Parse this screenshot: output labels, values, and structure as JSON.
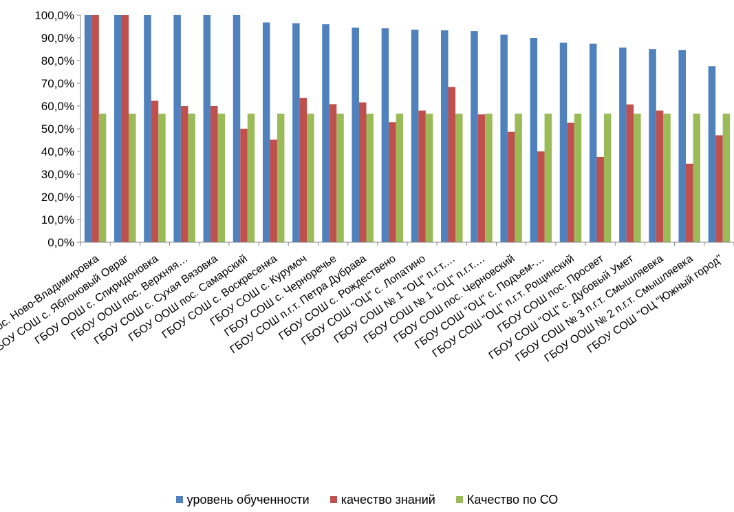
{
  "chart_data": {
    "type": "bar",
    "title": "",
    "xlabel": "",
    "ylabel": "",
    "ylim": [
      0,
      100
    ],
    "yticks": [
      "0,0%",
      "10,0%",
      "20,0%",
      "30,0%",
      "40,0%",
      "50,0%",
      "60,0%",
      "70,0%",
      "80,0%",
      "90,0%",
      "100,0%"
    ],
    "grid": false,
    "legend_position": "bottom",
    "categories": [
      "ГБОУ СОШ пос. Ново-Владимировка",
      "ГБОУ СОШ с. Яблоновый Овраг",
      "ГБОУ ООШ с. Спиридоновка",
      "ГБОУ ООШ пос. Верхняя…",
      "ГБОУ СОШ с. Сухая Вязовка",
      "ГБОУ ООШ пос. Самарский",
      "ГБОУ СОШ с. Воскресенка",
      "ГБОУ СОШ с. Курумоч",
      "ГБОУ СОШ с. Черноречье",
      "ГБОУ СОШ п.г.т. Петра Дубрава",
      "ГБОУ СОШ с. Рождествено",
      "ГБОУ СОШ \"ОЦ\" с. Лопатино",
      "ГБОУ СОШ № 1 \"ОЦ\" п.г.т.…",
      "ГБОУ СОШ № 1 \"ОЦ\" п.г.т.…",
      "ГБОУ СОШ пос. Черновский",
      "ГБОУ СОШ \"ОЦ\" с. Подъем-…",
      "ГБОУ СОШ \"ОЦ\" п.г.т. Рощинский",
      "ГБОУ СОШ пос. Просвет",
      "ГБОУ СОШ \"ОЦ\" с. Дубовый Умет",
      "ГБОУ СОШ № 3 п.г.т. Смышляевка",
      "ГБОУ ООШ № 2 п.г.т. Смышляевка",
      "ГБОУ СОШ \"ОЦ \"Южный город\""
    ],
    "series": [
      {
        "name": "уровень обученности",
        "color": "#4f81bd",
        "values": [
          100.0,
          100.0,
          100.0,
          100.0,
          100.0,
          100.0,
          96.8,
          96.4,
          96.0,
          94.5,
          94.2,
          93.6,
          93.3,
          93.0,
          91.4,
          90.0,
          87.9,
          87.4,
          85.7,
          85.1,
          84.6,
          77.5
        ]
      },
      {
        "name": "качество знаний",
        "color": "#c0504d",
        "values": [
          100.0,
          100.0,
          62.3,
          60.0,
          60.0,
          50.0,
          45.2,
          63.6,
          60.8,
          61.6,
          52.9,
          58.0,
          68.4,
          56.3,
          48.6,
          40.0,
          52.6,
          37.6,
          60.7,
          58.0,
          34.6,
          47.1
        ]
      },
      {
        "name": "Качество по СО",
        "color": "#9bbb59",
        "values": [
          56.6,
          56.6,
          56.6,
          56.6,
          56.6,
          56.6,
          56.6,
          56.6,
          56.6,
          56.6,
          56.6,
          56.6,
          56.6,
          56.6,
          56.6,
          56.6,
          56.6,
          56.6,
          56.6,
          56.6,
          56.6,
          56.6
        ]
      }
    ]
  }
}
